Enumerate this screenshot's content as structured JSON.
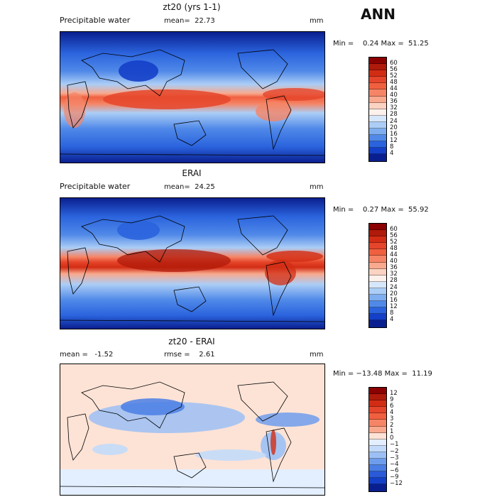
{
  "season": "ANN",
  "panels": [
    {
      "title": "zt20 (yrs 1-1)",
      "left_label": "Precipitable water",
      "stats_text": "mean=  22.73",
      "unit": "mm",
      "minmax": "Min =    0.24 Max =  51.25",
      "colorbar": {
        "labels": [
          "60",
          "56",
          "52",
          "48",
          "44",
          "40",
          "36",
          "32",
          "28",
          "24",
          "20",
          "16",
          "12",
          "8",
          "4"
        ],
        "colors": [
          "#8b0000",
          "#b01a0a",
          "#d22d14",
          "#e5452a",
          "#f0603f",
          "#f58566",
          "#f8a98e",
          "#fbd3c3",
          "#fdf1ec",
          "#d6e7fb",
          "#abcdf6",
          "#7eaef0",
          "#5089e8",
          "#2a63dd",
          "#143fc8",
          "#0a1f8f"
        ]
      }
    },
    {
      "title": "ERAI",
      "left_label": "Precipitable water",
      "stats_text": "mean=  24.25",
      "unit": "mm",
      "minmax": "Min =    0.27 Max =  55.92",
      "colorbar": {
        "labels": [
          "60",
          "56",
          "52",
          "48",
          "44",
          "40",
          "36",
          "32",
          "28",
          "24",
          "20",
          "16",
          "12",
          "8",
          "4"
        ],
        "colors": [
          "#8b0000",
          "#b01a0a",
          "#d22d14",
          "#e5452a",
          "#f0603f",
          "#f58566",
          "#f8a98e",
          "#fbd3c3",
          "#fdf1ec",
          "#d6e7fb",
          "#abcdf6",
          "#7eaef0",
          "#5089e8",
          "#2a63dd",
          "#143fc8",
          "#0a1f8f"
        ]
      }
    },
    {
      "title": "zt20 - ERAI",
      "left_label": "mean =   -1.52",
      "stats_text": "rmse =    2.61",
      "unit": "mm",
      "minmax": "Min = −13.48 Max =  11.19",
      "colorbar": {
        "labels": [
          "12",
          "9",
          "6",
          "4",
          "3",
          "2",
          "1",
          "0",
          "−1",
          "−2",
          "−3",
          "−4",
          "−6",
          "−9",
          "−12"
        ],
        "colors": [
          "#8b0000",
          "#b01a0a",
          "#d22d14",
          "#e5452a",
          "#f0603f",
          "#f58566",
          "#f8a98e",
          "#fde3d6",
          "#e3efff",
          "#c3dafa",
          "#9cc0f5",
          "#6f9ded",
          "#4a7ee5",
          "#2a5ad8",
          "#143fc8",
          "#0a1f8f"
        ]
      }
    }
  ]
}
